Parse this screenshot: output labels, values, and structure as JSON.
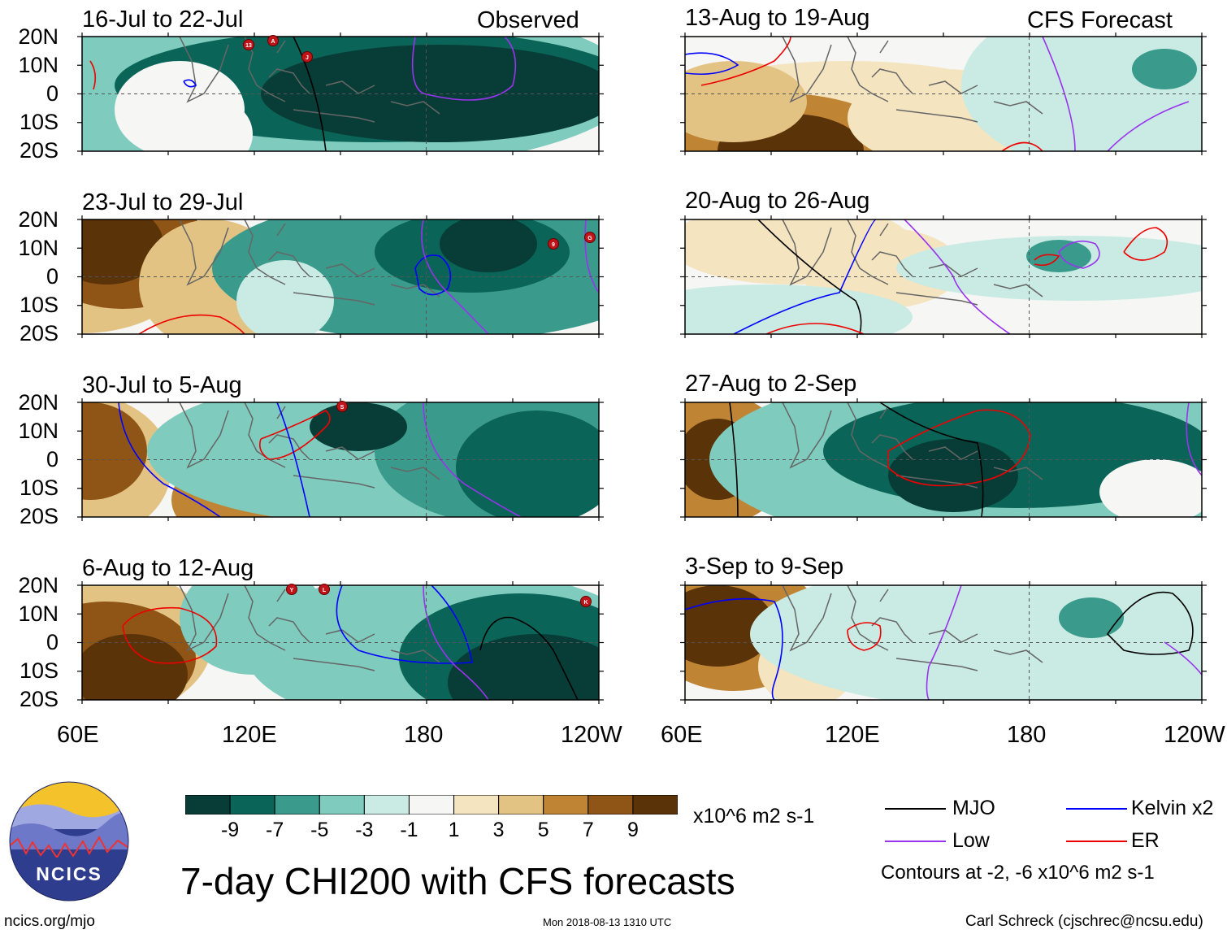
{
  "observed_label": "Observed",
  "forecast_label": "CFS Forecast",
  "observed_panels": [
    {
      "title": "16-Jul to 22-Jul"
    },
    {
      "title": "23-Jul to 29-Jul"
    },
    {
      "title": "30-Jul to 5-Aug"
    },
    {
      "title": "6-Aug to 12-Aug"
    }
  ],
  "forecast_panels": [
    {
      "title": "13-Aug to 19-Aug"
    },
    {
      "title": "20-Aug to 26-Aug"
    },
    {
      "title": "27-Aug to 2-Sep"
    },
    {
      "title": "3-Sep to 9-Sep"
    }
  ],
  "lat_labels": [
    "20N",
    "10N",
    "0",
    "10S",
    "20S"
  ],
  "lon_labels": [
    "60E",
    "120E",
    "180",
    "120W"
  ],
  "storm_markers": [
    {
      "panel": 0,
      "label": "13"
    },
    {
      "panel": 0,
      "label": "A"
    },
    {
      "panel": 0,
      "label": "J"
    },
    {
      "panel": 1,
      "label": "9"
    },
    {
      "panel": 1,
      "label": "G"
    },
    {
      "panel": 2,
      "label": "S"
    },
    {
      "panel": 3,
      "label": "Y"
    },
    {
      "panel": 3,
      "label": "L"
    },
    {
      "panel": 3,
      "label": "K"
    }
  ],
  "colorbar": {
    "ticks": [
      "-9",
      "-7",
      "-5",
      "-3",
      "-1",
      "1",
      "3",
      "5",
      "7",
      "9"
    ],
    "colors": [
      "#073d36",
      "#0a6458",
      "#3a9a8c",
      "#7fcbbd",
      "#c9ebe3",
      "#f6f6f4",
      "#f4e4bf",
      "#e3c383",
      "#bf8535",
      "#8f5517",
      "#5a3308"
    ],
    "units": "x10^6 m2 s-1"
  },
  "legend": {
    "items": [
      {
        "label": "MJO",
        "color": "#000000"
      },
      {
        "label": "Kelvin x2",
        "color": "#0000ff"
      },
      {
        "label": "Low",
        "color": "#9933ee"
      },
      {
        "label": "ER",
        "color": "#ee0000"
      }
    ],
    "contours_note": "Contours at -2, -6 x10^6 m2 s-1"
  },
  "main_title": "7-day CHI200 with CFS forecasts",
  "logo_text": "NCICS",
  "website": "ncics.org/mjo",
  "timestamp": "Mon 2018-08-13 1310 UTC",
  "author": "Carl Schreck (cjschrec@ncsu.edu)"
}
